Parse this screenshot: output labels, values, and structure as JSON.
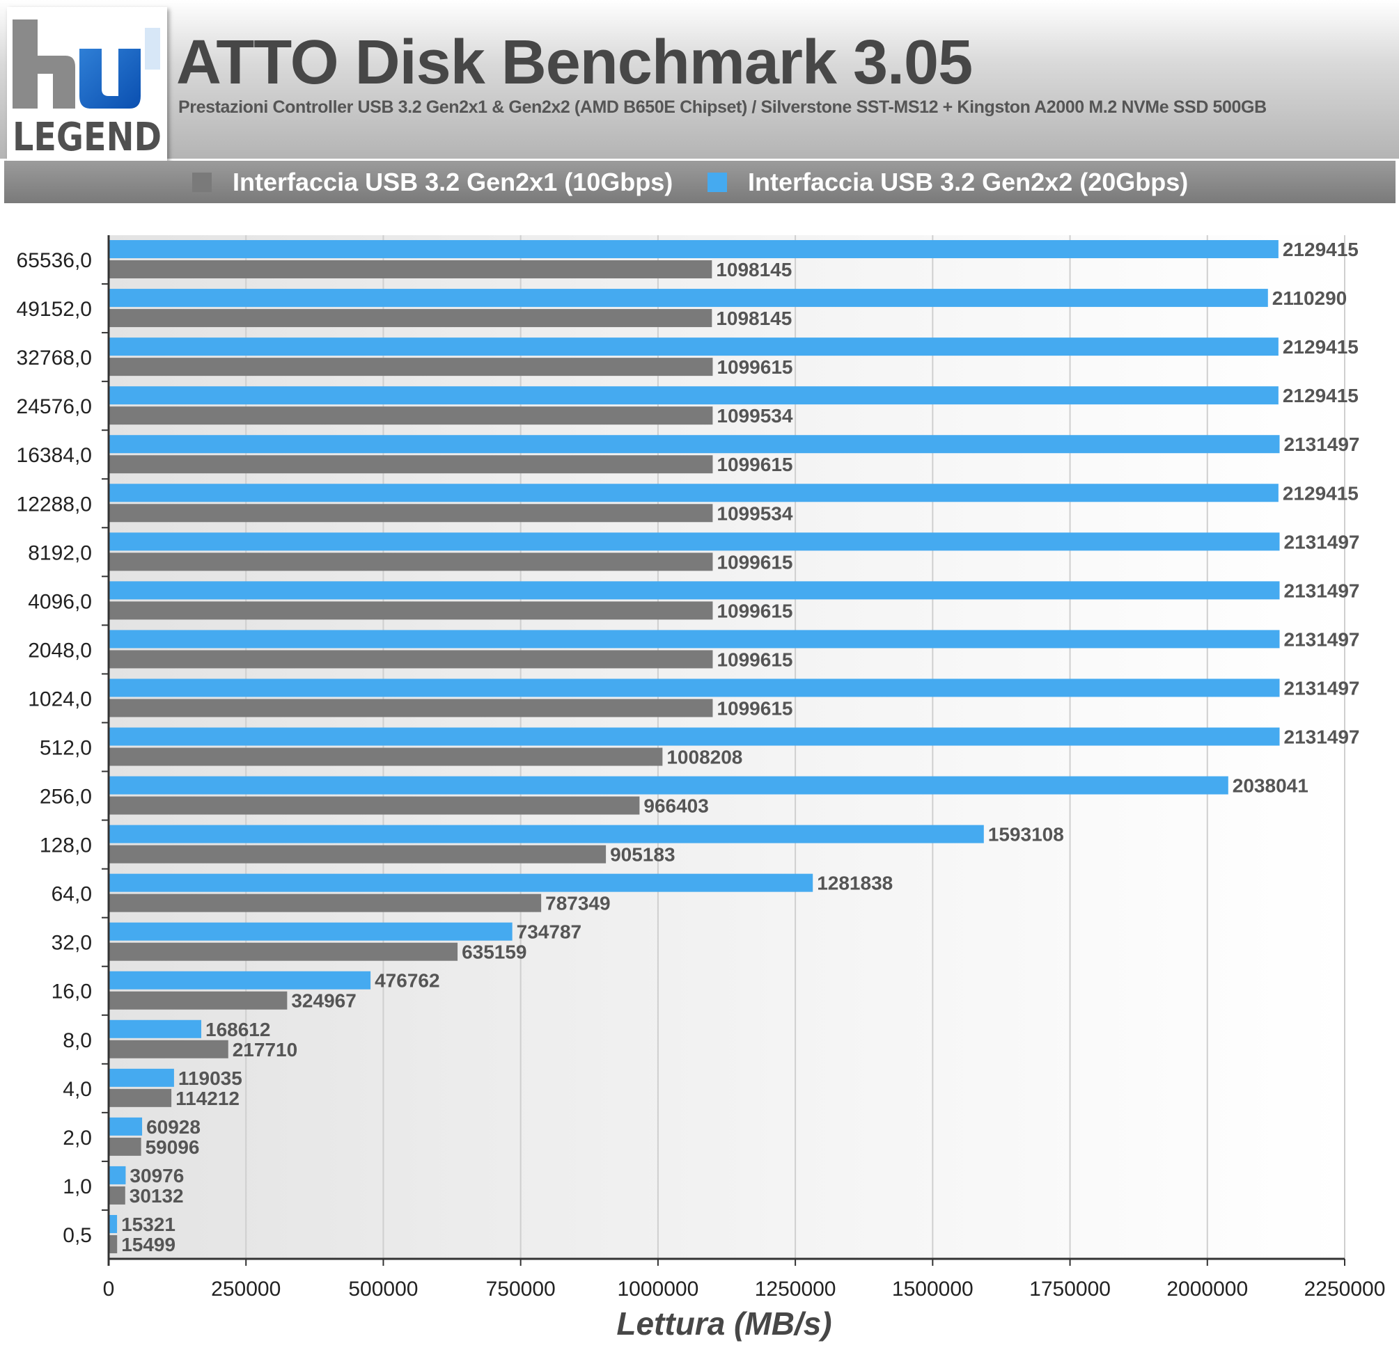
{
  "header": {
    "logo_top": "hw",
    "logo_bottom": "LEGEND",
    "title": "ATTO Disk Benchmark 3.05",
    "subtitle": "Prestazioni Controller USB 3.2 Gen2x1 & Gen2x2 (AMD B650E Chipset) / Silverstone SST-MS12 + Kingston A2000 M.2 NVMe SSD 500GB"
  },
  "colors": {
    "gen2x1": "#7a7a7a",
    "gen2x2": "#45aaf0"
  },
  "chart_data": {
    "type": "bar",
    "orientation": "horizontal",
    "title": "ATTO Disk Benchmark 3.05",
    "subtitle": "Prestazioni Controller USB 3.2 Gen2x1 & Gen2x2 (AMD B650E Chipset) / Silverstone SST-MS12 + Kingston A2000 M.2 NVMe SSD 500GB",
    "xlabel": "Lettura (MB/s)",
    "ylabel": "",
    "xlim": [
      0,
      2250000
    ],
    "xticks": [
      0,
      250000,
      500000,
      750000,
      1000000,
      1250000,
      1500000,
      1750000,
      2000000,
      2250000
    ],
    "grid": "vertical",
    "legend_position": "top",
    "categories": [
      "65536,0",
      "49152,0",
      "32768,0",
      "24576,0",
      "16384,0",
      "12288,0",
      "8192,0",
      "4096,0",
      "2048,0",
      "1024,0",
      "512,0",
      "256,0",
      "128,0",
      "64,0",
      "32,0",
      "16,0",
      "8,0",
      "4,0",
      "2,0",
      "1,0",
      "0,5"
    ],
    "series": [
      {
        "name": "Interfaccia USB 3.2 Gen2x1 (10Gbps)",
        "color": "#7a7a7a",
        "values": [
          1098145,
          1098145,
          1099615,
          1099534,
          1099615,
          1099534,
          1099615,
          1099615,
          1099615,
          1099615,
          1008208,
          966403,
          905183,
          787349,
          635159,
          324967,
          217710,
          114212,
          59096,
          30132,
          15499
        ]
      },
      {
        "name": "Interfaccia USB 3.2 Gen2x2 (20Gbps)",
        "color": "#45aaf0",
        "values": [
          2129415,
          2110290,
          2129415,
          2129415,
          2131497,
          2129415,
          2131497,
          2131497,
          2131497,
          2131497,
          2131497,
          2038041,
          1593108,
          1281838,
          734787,
          476762,
          168612,
          119035,
          60928,
          30976,
          15321
        ]
      }
    ]
  }
}
